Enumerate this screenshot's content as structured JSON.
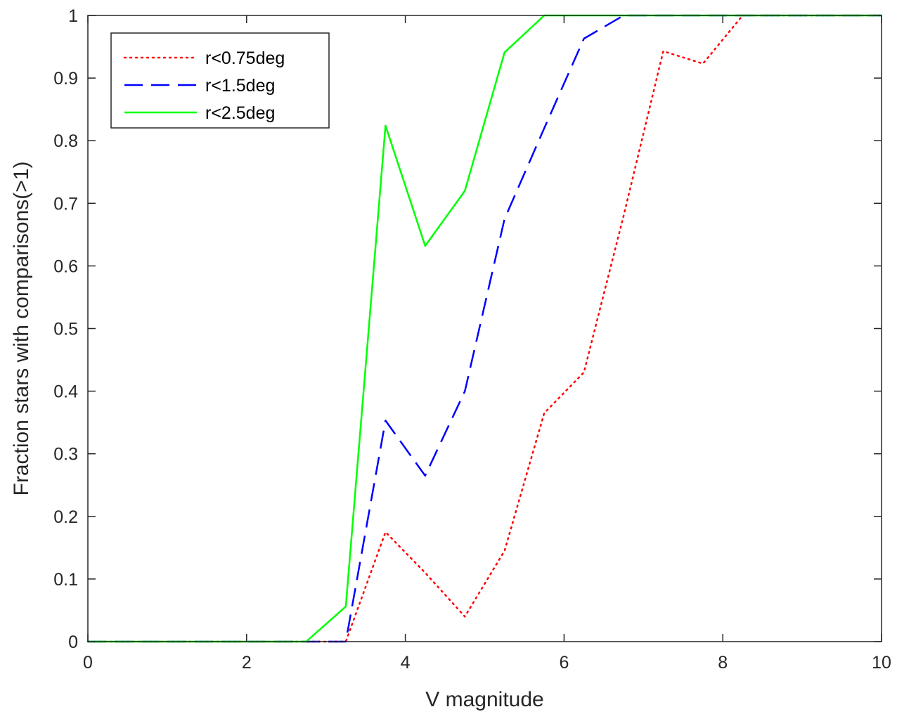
{
  "chart_data": {
    "type": "line",
    "title": "",
    "xlabel": "V magnitude",
    "ylabel": "Fraction stars with comparisons(>1)",
    "xlim": [
      0,
      10
    ],
    "ylim": [
      0,
      1
    ],
    "x_ticks": [
      0,
      2,
      4,
      6,
      8,
      10
    ],
    "x_tick_labels": [
      "0",
      "2",
      "4",
      "6",
      "8",
      "10"
    ],
    "y_ticks": [
      0,
      0.1,
      0.2,
      0.3,
      0.4,
      0.5,
      0.6,
      0.7,
      0.8,
      0.9,
      1
    ],
    "y_tick_labels": [
      "0",
      "0.1",
      "0.2",
      "0.3",
      "0.4",
      "0.5",
      "0.6",
      "0.7",
      "0.8",
      "0.9",
      "1"
    ],
    "grid": false,
    "legend_position": "top-left",
    "series": [
      {
        "name": "r<0.75deg",
        "color": "#ff0000",
        "line_style": "dotted",
        "x": [
          0,
          0.25,
          0.75,
          1.25,
          1.75,
          2.25,
          2.75,
          3.25,
          3.75,
          4.25,
          4.75,
          5.25,
          5.75,
          6.25,
          6.75,
          7.25,
          7.75,
          8.25,
          8.75,
          9.25,
          9.75,
          10
        ],
        "values": [
          0,
          0,
          0,
          0,
          0,
          0,
          0,
          0,
          0.175,
          0.11,
          0.04,
          0.145,
          0.365,
          0.43,
          0.68,
          0.943,
          0.923,
          1,
          1,
          1,
          1,
          1
        ]
      },
      {
        "name": "r<1.5deg",
        "color": "#0000ff",
        "line_style": "dashed",
        "x": [
          0,
          0.25,
          0.75,
          1.25,
          1.75,
          2.25,
          2.75,
          3.25,
          3.75,
          4.25,
          4.75,
          5.25,
          5.75,
          6.25,
          6.75,
          7.25,
          7.75,
          8.25,
          8.75,
          9.25,
          9.75,
          10
        ],
        "values": [
          0,
          0,
          0,
          0,
          0,
          0,
          0,
          0,
          0.353,
          0.265,
          0.4,
          0.675,
          0.82,
          0.963,
          1,
          1,
          1,
          1,
          1,
          1,
          1,
          1
        ]
      },
      {
        "name": "r<2.5deg",
        "color": "#00ff00",
        "line_style": "solid",
        "x": [
          0,
          0.25,
          0.75,
          1.25,
          1.75,
          2.25,
          2.75,
          3.25,
          3.75,
          4.25,
          4.75,
          5.25,
          5.75,
          6.25,
          6.75,
          7.25,
          7.75,
          8.25,
          8.75,
          9.25,
          9.75,
          10
        ],
        "values": [
          0,
          0,
          0,
          0,
          0,
          0,
          0,
          0.056,
          0.824,
          0.632,
          0.72,
          0.941,
          1,
          1,
          1,
          1,
          1,
          1,
          1,
          1,
          1,
          1
        ]
      }
    ]
  }
}
